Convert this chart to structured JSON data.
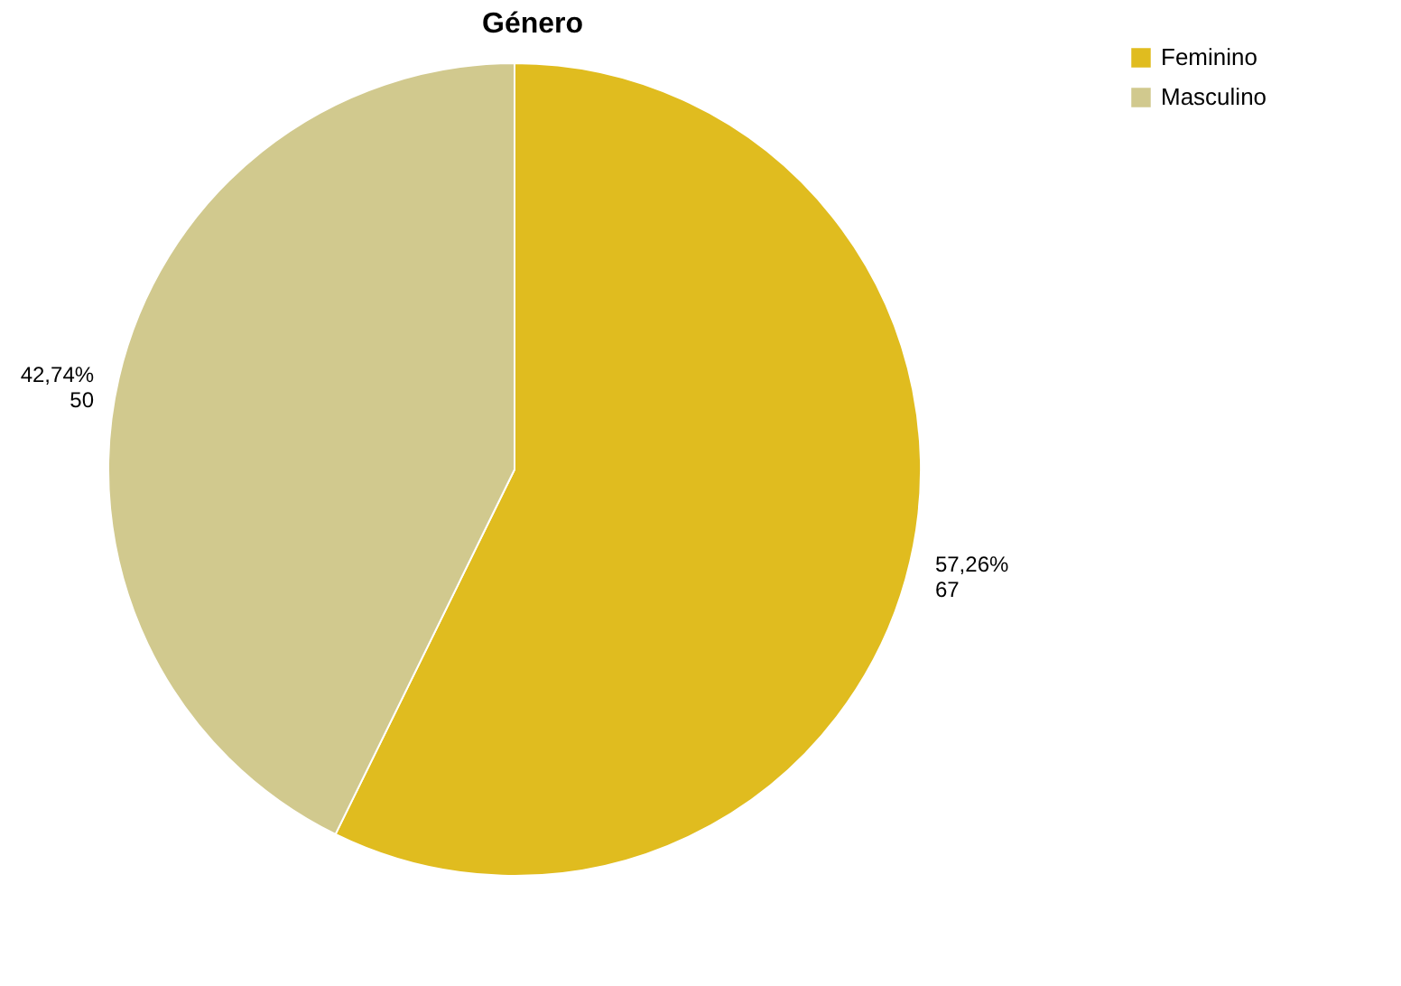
{
  "chart_data": {
    "type": "pie",
    "title": "Género",
    "categories": [
      "Feminino",
      "Masculino"
    ],
    "values": [
      67,
      50
    ],
    "colors": [
      "#e0bc1f",
      "#d1c98e"
    ],
    "value_labels": [
      "57,26%\n67",
      "42,74%\n50"
    ],
    "legend": "top right"
  }
}
